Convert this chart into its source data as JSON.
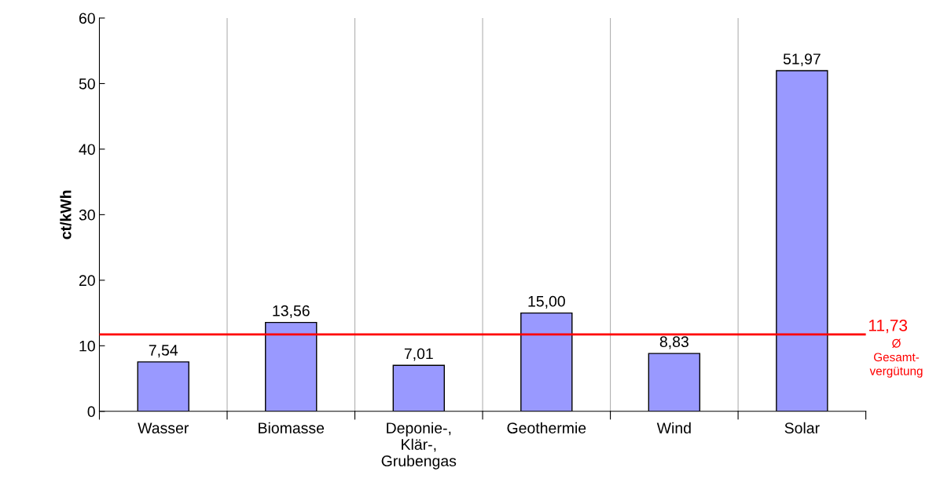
{
  "chart_data": {
    "type": "bar",
    "ylabel": "ct/kWh",
    "categories": [
      "Wasser",
      "Biomasse",
      "Deponie-,\nKlär-,\nGrubengas",
      "Geothermie",
      "Wind",
      "Solar"
    ],
    "values": [
      7.54,
      13.56,
      7.01,
      15.0,
      8.83,
      51.97
    ],
    "value_labels": [
      "7,54",
      "13,56",
      "7,01",
      "15,00",
      "8,83",
      "51,97"
    ],
    "color": "#9999ff",
    "ylim": [
      0,
      60
    ],
    "yticks": [
      0,
      10,
      20,
      30,
      40,
      50,
      60
    ],
    "grid": "x",
    "ref_lines": [
      {
        "axis": "y",
        "value": 11.73,
        "label": "11,73",
        "color": "#ff0000",
        "line_style": "solid"
      }
    ],
    "annotations": [
      "Ø\nGesamt-\nvergütung"
    ]
  }
}
